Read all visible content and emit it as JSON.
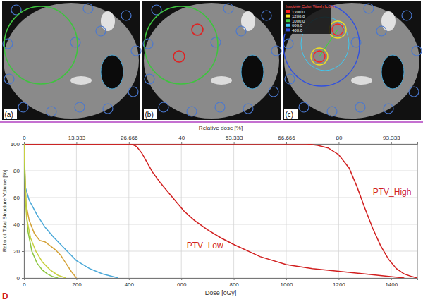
{
  "panels": [
    {
      "label": "(a)"
    },
    {
      "label": "(b)"
    },
    {
      "label": "(c)",
      "legend_title": "Isodose Color Wash [cGy]",
      "legend": [
        {
          "label": "1300.0",
          "color": "#ff2020"
        },
        {
          "label": "1200.0",
          "color": "#f0e020"
        },
        {
          "label": "1000.0",
          "color": "#40d040"
        },
        {
          "label": "600.0",
          "color": "#40c8f0"
        },
        {
          "label": "400.0",
          "color": "#3050e0"
        }
      ]
    }
  ],
  "chart_data": {
    "type": "line",
    "panel_label": "D",
    "x_label": "Dose [cGy]",
    "x2_label": "Relative dose [%]",
    "y_label": "Ratio of Total Structure Volume [%]",
    "xlim": [
      0,
      1500
    ],
    "xticks": [
      0,
      200,
      400,
      600,
      800,
      1000,
      1200,
      1400
    ],
    "x2lim": [
      0,
      100
    ],
    "x2ticks": [
      0,
      13.333,
      26.666,
      40,
      53.333,
      66.666,
      80,
      93.333
    ],
    "ylim": [
      0,
      100
    ],
    "yticks": [
      0,
      20,
      40,
      60,
      80,
      100
    ],
    "grid": true,
    "series": [
      {
        "color": "#d11f1f",
        "x": [
          0,
          1080,
          1120,
          1160,
          1200,
          1240,
          1270,
          1300,
          1330,
          1360,
          1390,
          1420,
          1450,
          1480,
          1500
        ],
        "values": [
          100,
          100,
          99,
          97,
          92,
          82,
          68,
          52,
          37,
          24,
          14,
          7,
          3,
          1,
          0
        ]
      },
      {
        "color": "#d11f1f",
        "x": [
          0,
          410,
          430,
          450,
          470,
          490,
          520,
          550,
          580,
          610,
          650,
          700,
          750,
          800,
          900,
          1000,
          1100,
          1200,
          1300,
          1450
        ],
        "values": [
          100,
          100,
          98,
          93,
          86,
          79,
          71,
          64,
          57,
          50,
          43,
          36,
          30,
          25,
          16,
          10,
          7,
          5,
          3,
          0
        ]
      },
      {
        "color": "#4aa8d8",
        "x": [
          0,
          5,
          20,
          50,
          80,
          110,
          140,
          170,
          200,
          250,
          300,
          360
        ],
        "values": [
          100,
          68,
          58,
          47,
          38,
          31,
          25,
          19,
          13,
          7,
          3,
          0
        ]
      },
      {
        "color": "#d4a238",
        "x": [
          0,
          8,
          20,
          40,
          60,
          80,
          100,
          120,
          140,
          160,
          180,
          200
        ],
        "values": [
          100,
          55,
          43,
          33,
          28,
          27,
          24,
          21,
          17,
          11,
          5,
          0
        ]
      },
      {
        "color": "#8cc63f",
        "x": [
          0,
          5,
          15,
          30,
          50,
          70,
          90,
          110,
          130
        ],
        "values": [
          100,
          60,
          35,
          20,
          11,
          6,
          3,
          1,
          0
        ]
      },
      {
        "color": "#c8d040",
        "x": [
          0,
          10,
          25,
          45,
          70,
          100,
          130,
          160
        ],
        "values": [
          100,
          45,
          30,
          20,
          12,
          6,
          2,
          0
        ]
      }
    ],
    "annotations": [
      {
        "text": "PTV_High",
        "x": 1330,
        "y": 62
      },
      {
        "text": "PTV_Low",
        "x": 620,
        "y": 22
      }
    ]
  }
}
